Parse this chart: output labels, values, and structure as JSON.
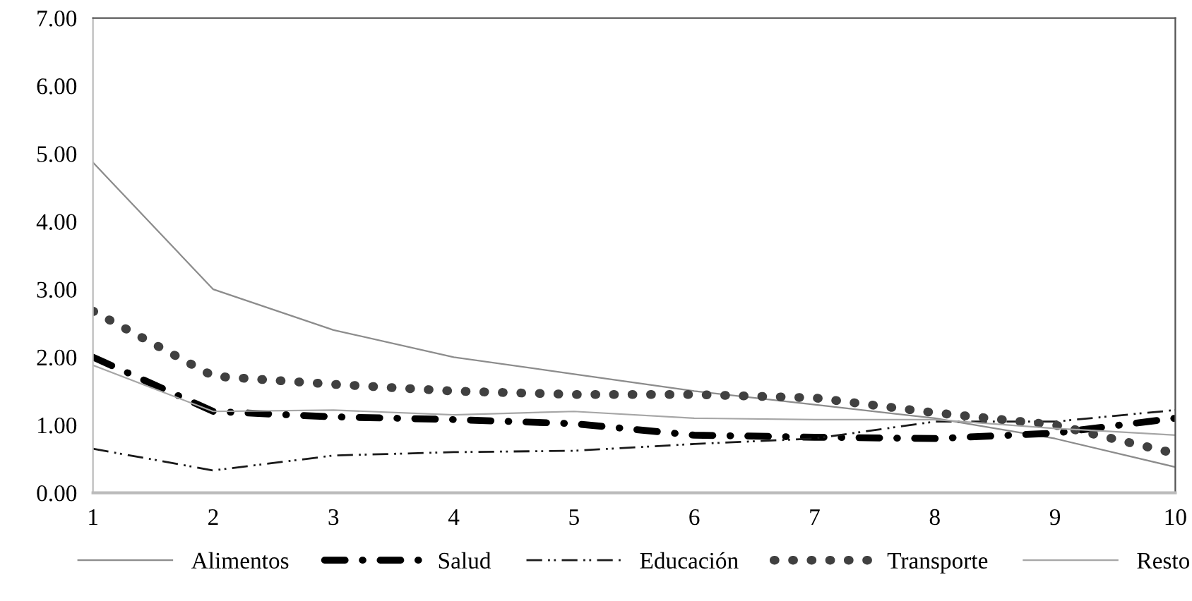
{
  "chart_data": {
    "type": "line",
    "x": [
      1,
      2,
      3,
      4,
      5,
      6,
      7,
      8,
      9,
      10
    ],
    "series": [
      {
        "name": "Alimentos",
        "color": "#8c8c8c",
        "line_style": "solid",
        "values": [
          4.87,
          3.0,
          2.4,
          2.0,
          1.75,
          1.5,
          1.3,
          1.1,
          0.8,
          0.38
        ]
      },
      {
        "name": "Salud",
        "color": "#000000",
        "line_style": "dashdot",
        "values": [
          2.0,
          1.2,
          1.12,
          1.08,
          1.02,
          0.85,
          0.82,
          0.8,
          0.88,
          1.1
        ]
      },
      {
        "name": "Educación",
        "color": "#1a1a1a",
        "line_style": "dashdotdot",
        "values": [
          0.65,
          0.33,
          0.55,
          0.6,
          0.62,
          0.72,
          0.8,
          1.05,
          1.05,
          1.22
        ]
      },
      {
        "name": "Transporte",
        "color": "#404040",
        "line_style": "dotted",
        "values": [
          2.68,
          1.72,
          1.6,
          1.5,
          1.45,
          1.45,
          1.4,
          1.18,
          1.0,
          0.58
        ]
      },
      {
        "name": "Resto",
        "color": "#a6a6a6",
        "line_style": "solid",
        "values": [
          1.88,
          1.2,
          1.22,
          1.15,
          1.2,
          1.1,
          1.08,
          1.08,
          0.95,
          0.85
        ]
      }
    ],
    "xlim": [
      1,
      10
    ],
    "xticks": [
      1,
      2,
      3,
      4,
      5,
      6,
      7,
      8,
      9,
      10
    ],
    "ylim": [
      0,
      7
    ],
    "yticks": [
      {
        "value": 0,
        "label": "0.00"
      },
      {
        "value": 1,
        "label": "1.00"
      },
      {
        "value": 2,
        "label": "2.00"
      },
      {
        "value": 3,
        "label": "3.00"
      },
      {
        "value": 4,
        "label": "4.00"
      },
      {
        "value": 5,
        "label": "5.00"
      },
      {
        "value": 6,
        "label": "6.00"
      },
      {
        "value": 7,
        "label": "7.00"
      }
    ],
    "grid": false,
    "legend": "bottom",
    "marker": "none"
  }
}
